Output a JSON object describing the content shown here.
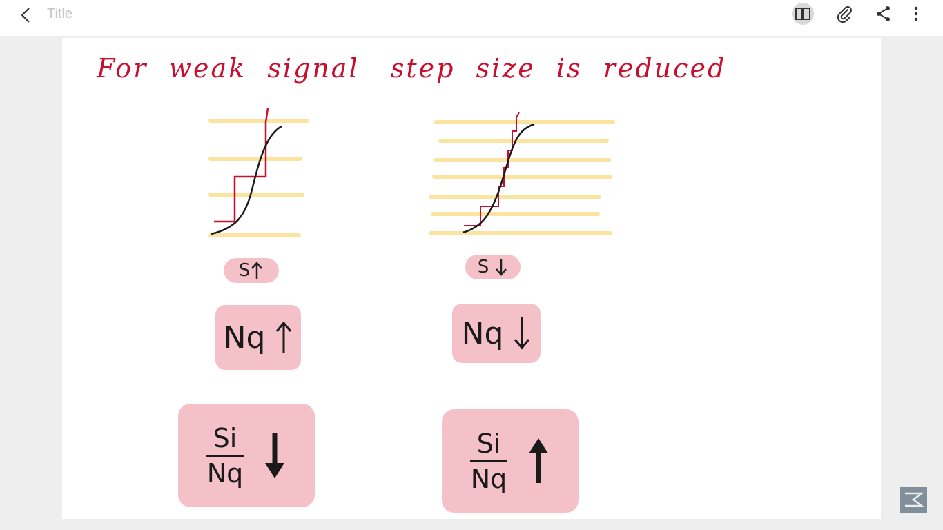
{
  "topbar": {
    "title": "Title",
    "icons": [
      "back-icon",
      "book-icon",
      "paperclip-icon",
      "share-icon",
      "more-vertical-icon"
    ]
  },
  "note": {
    "heading": "For  weak  signal   step  size  is  reduced",
    "left": {
      "step_label": "S",
      "noise_label": "Nq",
      "snr_numerator": "Si",
      "snr_denominator": "Nq"
    },
    "right": {
      "step_label": "S",
      "noise_label": "Nq",
      "snr_numerator": "Si",
      "snr_denominator": "Nq"
    }
  },
  "colors": {
    "ink_red": "#c8102e",
    "ink_black": "#1a1a1a",
    "highlight_yellow": "#fbe3a0",
    "highlight_pink": "#f4c1c9"
  }
}
